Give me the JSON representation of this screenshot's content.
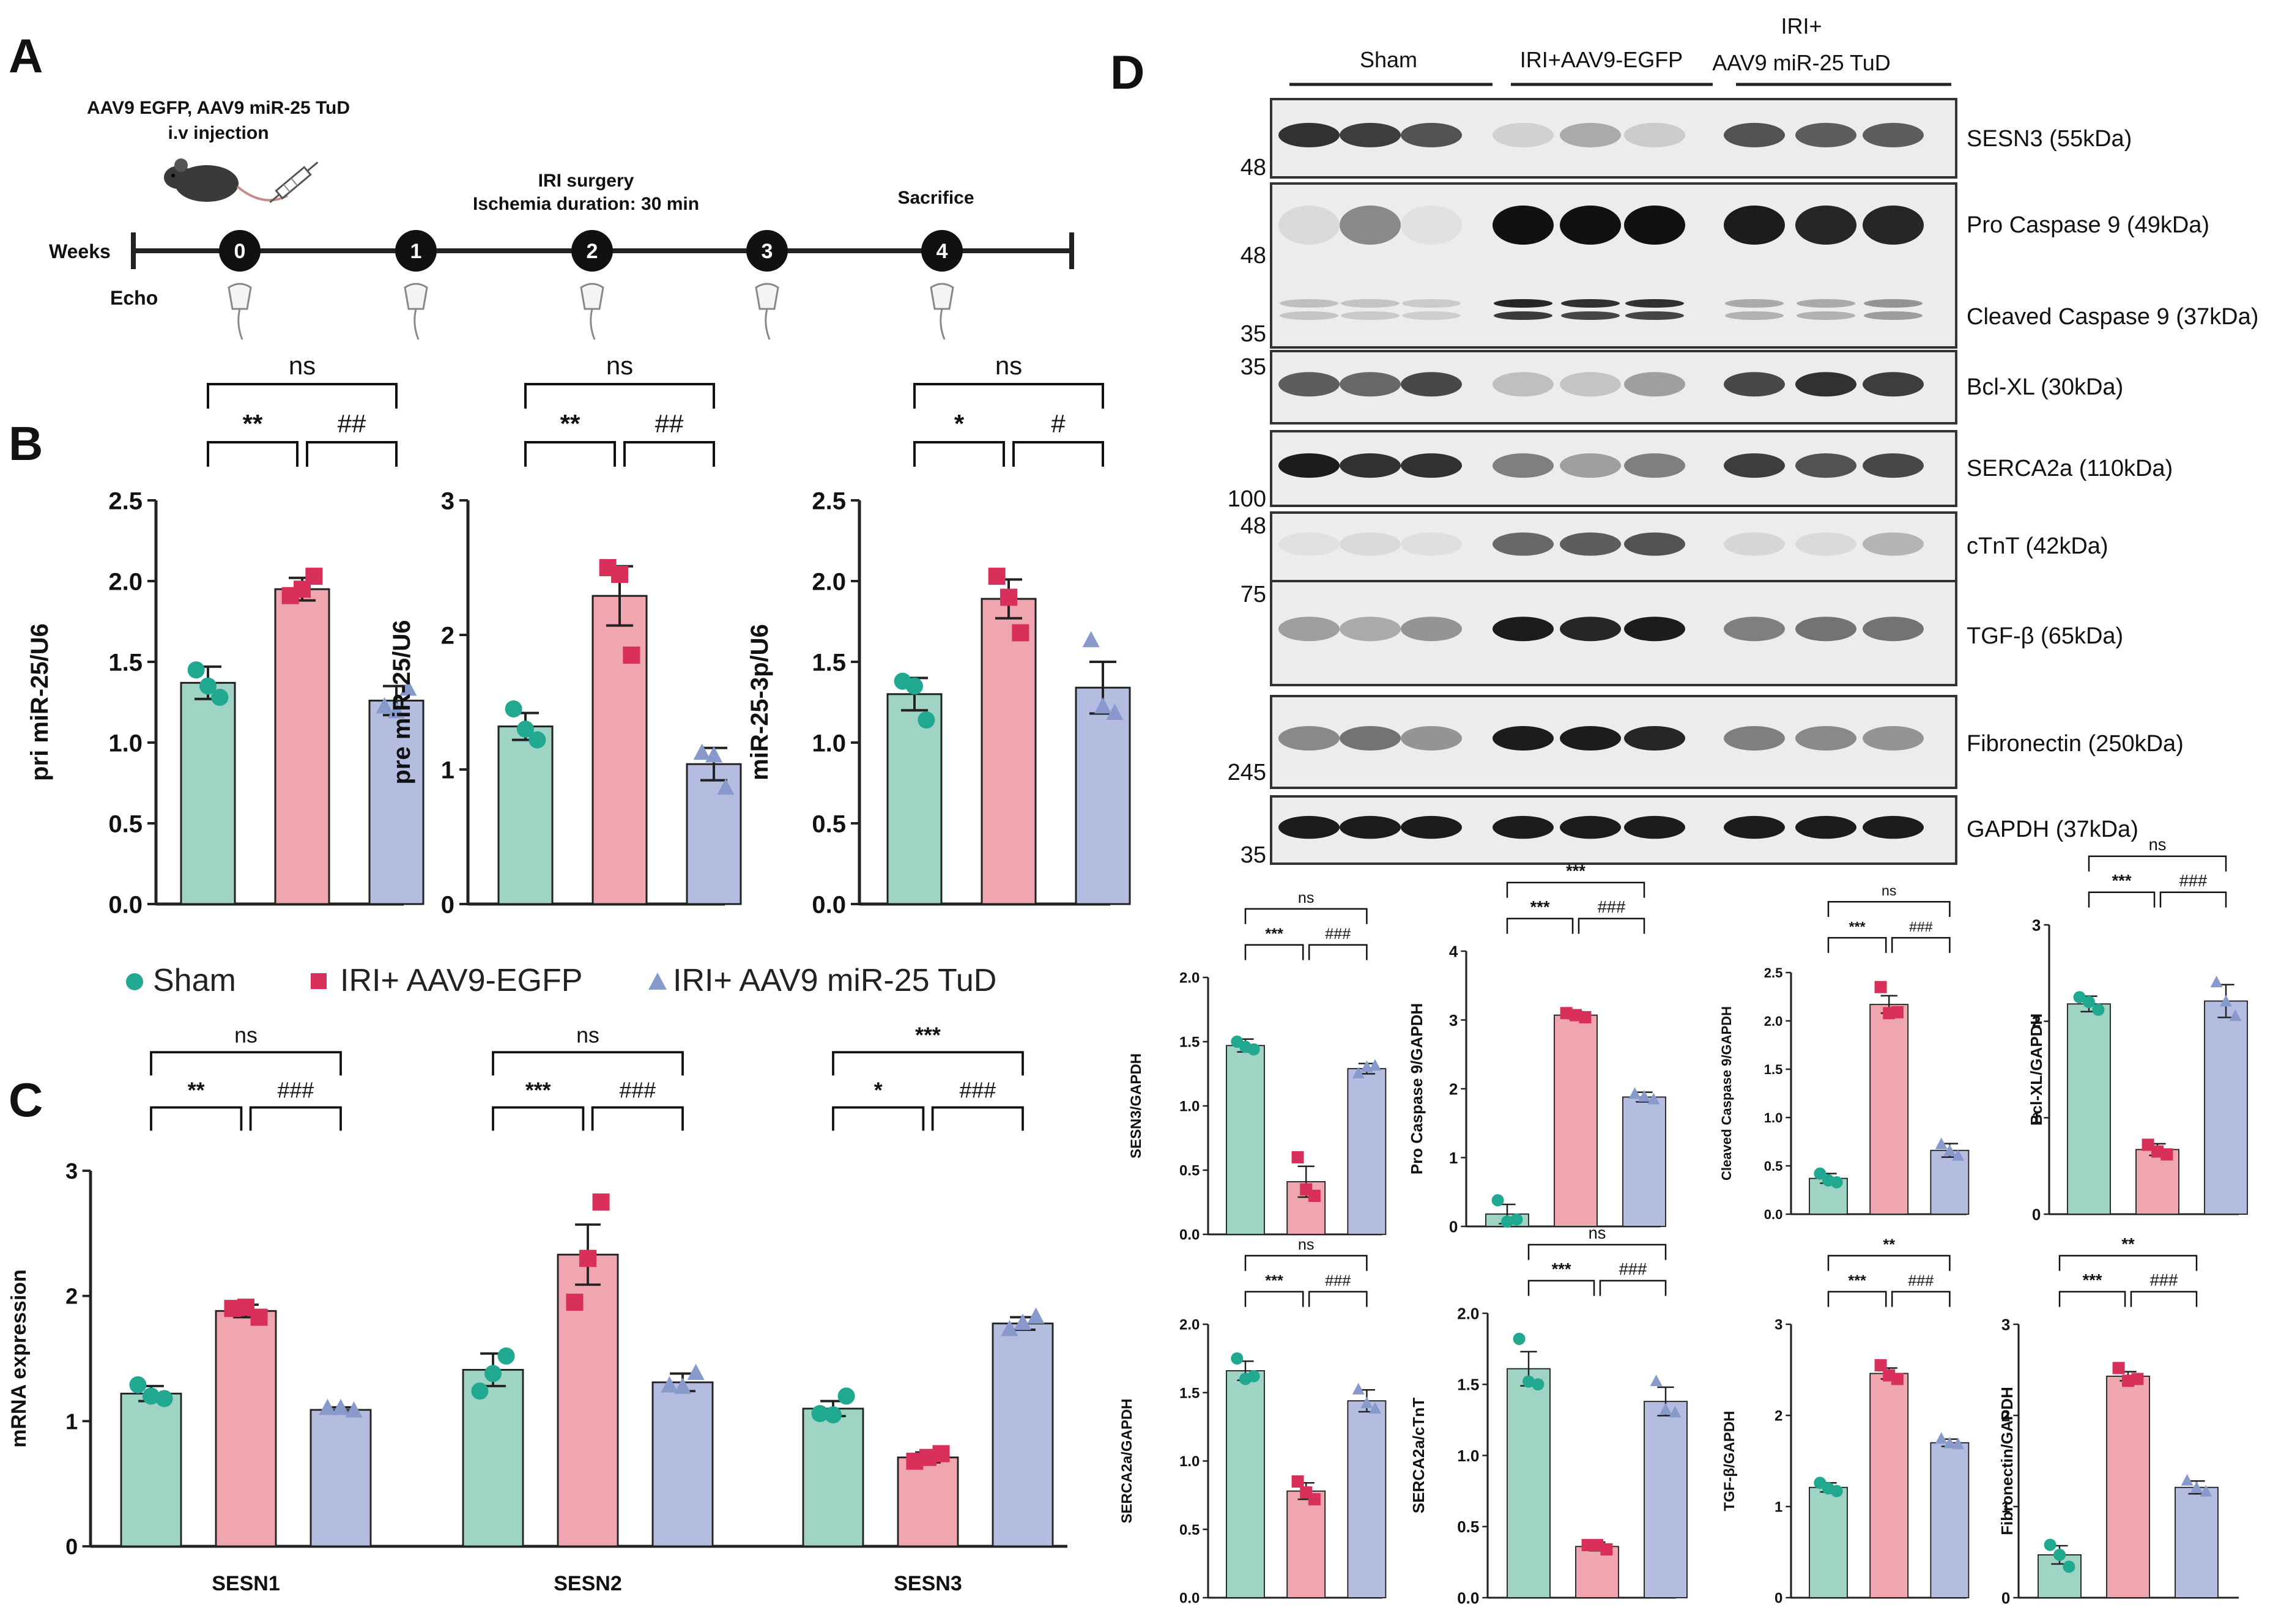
{
  "colors": {
    "sham": "#9fd3c4",
    "sham_dot": "#20a890",
    "iri": "#f0a6ae",
    "iri_dot": "#d8305a",
    "tud": "#b4bde0",
    "tud_dot": "#8899cc",
    "axis": "#222222",
    "bracket": "#111111"
  },
  "panel_labels": {
    "a": "A",
    "b": "B",
    "c": "C",
    "d": "D"
  },
  "timeline": {
    "weeks_label": "Weeks",
    "echo_label": "Echo",
    "injection_title": "AAV9 EGFP,  AAV9 miR-25 TuD",
    "injection_sub": "i.v injection",
    "surgery_title": "IRI surgery",
    "surgery_sub": "Ischemia duration: 30 min",
    "sacrifice_label": "Sacrifice",
    "week_nodes": [
      "0",
      "1",
      "2",
      "3",
      "4"
    ]
  },
  "legend": {
    "sham": "Sham",
    "iri": "IRI+ AAV9-EGFP",
    "tud": "IRI+ AAV9 miR-25 TuD"
  },
  "chart_data": [
    {
      "id": "B1",
      "type": "bar",
      "panel": "B",
      "ylabel": "pri miR-25/U6",
      "ylim": [
        0,
        2.5
      ],
      "yticks": [
        "0.0",
        "0.5",
        "1.0",
        "1.5",
        "2.0",
        "2.5"
      ],
      "tickvals": [
        0,
        0.5,
        1.0,
        1.5,
        2.0,
        2.5
      ],
      "categories": [
        "Sham",
        "IRI+ AAV9-EGFP",
        "IRI+ AAV9 miR-25 TuD"
      ],
      "values": [
        1.37,
        1.95,
        1.26
      ],
      "errors": [
        0.1,
        0.07,
        0.09
      ],
      "points": [
        [
          1.45,
          1.28,
          1.35
        ],
        [
          1.91,
          2.03,
          1.95
        ],
        [
          1.22,
          1.33,
          1.19
        ]
      ],
      "brackets": [
        {
          "from": 0,
          "to": 2,
          "label": "ns",
          "level": 2
        },
        {
          "from": 0,
          "to": 1,
          "label": "**",
          "level": 1
        },
        {
          "from": 1,
          "to": 2,
          "label": "##",
          "level": 1
        }
      ]
    },
    {
      "id": "B2",
      "type": "bar",
      "panel": "B",
      "ylabel": "pre miR-25/U6",
      "ylim": [
        0,
        3
      ],
      "yticks": [
        "0",
        "1",
        "2",
        "3"
      ],
      "tickvals": [
        0,
        1,
        2,
        3
      ],
      "categories": [
        "Sham",
        "IRI+ AAV9-EGFP",
        "IRI+ AAV9 miR-25 TuD"
      ],
      "values": [
        1.32,
        2.29,
        1.04
      ],
      "errors": [
        0.1,
        0.22,
        0.12
      ],
      "points": [
        [
          1.45,
          1.22,
          1.3
        ],
        [
          2.5,
          1.85,
          2.45
        ],
        [
          1.12,
          0.86,
          1.1
        ]
      ],
      "brackets": [
        {
          "from": 0,
          "to": 2,
          "label": "ns",
          "level": 2
        },
        {
          "from": 0,
          "to": 1,
          "label": "**",
          "level": 1
        },
        {
          "from": 1,
          "to": 2,
          "label": "##",
          "level": 1
        }
      ]
    },
    {
      "id": "B3",
      "type": "bar",
      "panel": "B",
      "ylabel": "miR-25-3p/U6",
      "ylim": [
        0,
        2.5
      ],
      "yticks": [
        "0.0",
        "0.5",
        "1.0",
        "1.5",
        "2.0",
        "2.5"
      ],
      "tickvals": [
        0,
        0.5,
        1.0,
        1.5,
        2.0,
        2.5
      ],
      "categories": [
        "Sham",
        "IRI+ AAV9-EGFP",
        "IRI+ AAV9 miR-25 TuD"
      ],
      "values": [
        1.3,
        1.89,
        1.34
      ],
      "errors": [
        0.1,
        0.12,
        0.16
      ],
      "points": [
        [
          1.38,
          1.14,
          1.35
        ],
        [
          2.03,
          1.68,
          1.9
        ],
        [
          1.63,
          1.18,
          1.22
        ]
      ],
      "brackets": [
        {
          "from": 0,
          "to": 2,
          "label": "ns",
          "level": 2
        },
        {
          "from": 0,
          "to": 1,
          "label": "*",
          "level": 1
        },
        {
          "from": 1,
          "to": 2,
          "label": "#",
          "level": 1
        }
      ]
    },
    {
      "id": "C",
      "type": "bar",
      "panel": "C",
      "ylabel": "mRNA expression",
      "ylim": [
        0,
        3
      ],
      "yticks": [
        "0",
        "1",
        "2",
        "3"
      ],
      "tickvals": [
        0,
        1,
        2,
        3
      ],
      "groups": [
        "SESN1",
        "SESN2",
        "SESN3"
      ],
      "series": [
        {
          "name": "Sham",
          "values": [
            1.22,
            1.41,
            1.1
          ],
          "errors": [
            0.06,
            0.13,
            0.06
          ],
          "points": [
            [
              1.29,
              1.18,
              1.2
            ],
            [
              1.24,
              1.52,
              1.38
            ],
            [
              1.06,
              1.2,
              1.05
            ]
          ]
        },
        {
          "name": "IRI+ AAV9-EGFP",
          "values": [
            1.88,
            2.33,
            0.71
          ],
          "errors": [
            0.05,
            0.24,
            0.04
          ],
          "points": [
            [
              1.9,
              1.83,
              1.91
            ],
            [
              1.95,
              2.75,
              2.3
            ],
            [
              0.68,
              0.74,
              0.71
            ]
          ]
        },
        {
          "name": "IRI+ AAV9 miR-25 TuD",
          "values": [
            1.09,
            1.31,
            1.78
          ],
          "errors": [
            0.02,
            0.07,
            0.05
          ],
          "points": [
            [
              1.1,
              1.08,
              1.1
            ],
            [
              1.28,
              1.38,
              1.27
            ],
            [
              1.73,
              1.83,
              1.78
            ]
          ]
        }
      ],
      "group_brackets": [
        [
          {
            "from": 0,
            "to": 2,
            "label": "ns",
            "level": 2
          },
          {
            "from": 0,
            "to": 1,
            "label": "**",
            "level": 1
          },
          {
            "from": 1,
            "to": 2,
            "label": "###",
            "level": 1
          }
        ],
        [
          {
            "from": 0,
            "to": 2,
            "label": "ns",
            "level": 2
          },
          {
            "from": 0,
            "to": 1,
            "label": "***",
            "level": 1
          },
          {
            "from": 1,
            "to": 2,
            "label": "###",
            "level": 1
          }
        ],
        [
          {
            "from": 0,
            "to": 2,
            "label": "***",
            "level": 2
          },
          {
            "from": 0,
            "to": 1,
            "label": "*",
            "level": 1
          },
          {
            "from": 1,
            "to": 2,
            "label": "###",
            "level": 1
          }
        ]
      ]
    },
    {
      "id": "D1",
      "type": "bar",
      "panel": "D",
      "ylabel": "SESN3/GAPDH",
      "ylim": [
        0,
        2.0
      ],
      "yticks": [
        "0.0",
        "0.5",
        "1.0",
        "1.5",
        "2.0"
      ],
      "tickvals": [
        0,
        0.5,
        1.0,
        1.5,
        2.0
      ],
      "categories": [
        "Sham",
        "IRI+ AAV9-EGFP",
        "IRI+ AAV9 miR-25 TuD"
      ],
      "values": [
        1.47,
        0.41,
        1.29
      ],
      "errors": [
        0.05,
        0.12,
        0.04
      ],
      "points": [
        [
          1.5,
          1.44,
          1.46
        ],
        [
          0.6,
          0.3,
          0.35
        ],
        [
          1.25,
          1.31,
          1.3
        ]
      ],
      "brackets": [
        {
          "from": 0,
          "to": 2,
          "label": "ns",
          "level": 2
        },
        {
          "from": 0,
          "to": 1,
          "label": "***",
          "level": 1
        },
        {
          "from": 1,
          "to": 2,
          "label": "###",
          "level": 1
        }
      ]
    },
    {
      "id": "D2",
      "type": "bar",
      "panel": "D",
      "ylabel": "Pro Caspase 9/GAPDH",
      "ylim": [
        0,
        4
      ],
      "yticks": [
        "0",
        "1",
        "2",
        "3",
        "4"
      ],
      "tickvals": [
        0,
        1,
        2,
        3,
        4
      ],
      "categories": [
        "Sham",
        "IRI+ AAV9-EGFP",
        "IRI+ AAV9 miR-25 TuD"
      ],
      "values": [
        0.18,
        3.07,
        1.88
      ],
      "errors": [
        0.14,
        0.05,
        0.07
      ],
      "points": [
        [
          0.38,
          0.1,
          0.07
        ],
        [
          3.1,
          3.04,
          3.07
        ],
        [
          1.92,
          1.84,
          1.88
        ]
      ],
      "brackets": [
        {
          "from": 0,
          "to": 2,
          "label": "***",
          "level": 2
        },
        {
          "from": 0,
          "to": 1,
          "label": "***",
          "level": 1
        },
        {
          "from": 1,
          "to": 2,
          "label": "###",
          "level": 1
        }
      ]
    },
    {
      "id": "D3",
      "type": "bar",
      "panel": "D",
      "ylabel": "Cleaved Caspase 9/GAPDH",
      "ylim": [
        0,
        2.5
      ],
      "yticks": [
        "0.0",
        "0.5",
        "1.0",
        "1.5",
        "2.0",
        "2.5"
      ],
      "tickvals": [
        0,
        0.5,
        1.0,
        1.5,
        2.0,
        2.5
      ],
      "categories": [
        "Sham",
        "IRI+ AAV9-EGFP",
        "IRI+ AAV9 miR-25 TuD"
      ],
      "values": [
        0.37,
        2.17,
        0.66
      ],
      "errors": [
        0.05,
        0.09,
        0.07
      ],
      "points": [
        [
          0.42,
          0.33,
          0.35
        ],
        [
          2.35,
          2.09,
          2.08
        ],
        [
          0.72,
          0.6,
          0.65
        ]
      ],
      "brackets": [
        {
          "from": 0,
          "to": 2,
          "label": "ns",
          "level": 2
        },
        {
          "from": 0,
          "to": 1,
          "label": "***",
          "level": 1
        },
        {
          "from": 1,
          "to": 2,
          "label": "###",
          "level": 1
        }
      ]
    },
    {
      "id": "D4",
      "type": "bar",
      "panel": "D",
      "ylabel": "Bcl-XL/GAPDH",
      "ylim": [
        0,
        3
      ],
      "yticks": [
        "0",
        "1",
        "2",
        "3"
      ],
      "tickvals": [
        0,
        1,
        2,
        3
      ],
      "categories": [
        "Sham",
        "IRI+ AAV9-EGFP",
        "IRI+ AAV9 miR-25 TuD"
      ],
      "values": [
        2.18,
        0.67,
        2.21
      ],
      "errors": [
        0.08,
        0.06,
        0.17
      ],
      "points": [
        [
          2.25,
          2.12,
          2.2
        ],
        [
          0.72,
          0.62,
          0.65
        ],
        [
          2.4,
          2.05,
          2.2
        ]
      ],
      "brackets": [
        {
          "from": 0,
          "to": 2,
          "label": "ns",
          "level": 2
        },
        {
          "from": 0,
          "to": 1,
          "label": "***",
          "level": 1
        },
        {
          "from": 1,
          "to": 2,
          "label": "###",
          "level": 1
        }
      ]
    },
    {
      "id": "D5",
      "type": "bar",
      "panel": "D",
      "ylabel": "SERCA2a/GAPDH",
      "ylim": [
        0,
        2.0
      ],
      "yticks": [
        "0.0",
        "0.5",
        "1.0",
        "1.5",
        "2.0"
      ],
      "tickvals": [
        0,
        0.5,
        1.0,
        1.5,
        2.0
      ],
      "categories": [
        "Sham",
        "IRI+ AAV9-EGFP",
        "IRI+ AAV9 miR-25 TuD"
      ],
      "values": [
        1.66,
        0.78,
        1.44
      ],
      "errors": [
        0.07,
        0.06,
        0.08
      ],
      "points": [
        [
          1.75,
          1.62,
          1.6
        ],
        [
          0.85,
          0.72,
          0.77
        ],
        [
          1.52,
          1.38,
          1.42
        ]
      ],
      "brackets": [
        {
          "from": 0,
          "to": 2,
          "label": "ns",
          "level": 2
        },
        {
          "from": 0,
          "to": 1,
          "label": "***",
          "level": 1
        },
        {
          "from": 1,
          "to": 2,
          "label": "###",
          "level": 1
        }
      ]
    },
    {
      "id": "D6",
      "type": "bar",
      "panel": "D",
      "ylabel": "SERCA2a/cTnT",
      "ylim": [
        0,
        2.0
      ],
      "yticks": [
        "0.0",
        "0.5",
        "1.0",
        "1.5",
        "2.0"
      ],
      "tickvals": [
        0,
        0.5,
        1.0,
        1.5,
        2.0
      ],
      "categories": [
        "Sham",
        "IRI+ AAV9-EGFP",
        "IRI+ AAV9 miR-25 TuD"
      ],
      "values": [
        1.61,
        0.36,
        1.38
      ],
      "errors": [
        0.12,
        0.03,
        0.1
      ],
      "points": [
        [
          1.82,
          1.5,
          1.52
        ],
        [
          0.37,
          0.34,
          0.37
        ],
        [
          1.52,
          1.3,
          1.32
        ]
      ],
      "brackets": [
        {
          "from": 0,
          "to": 2,
          "label": "ns",
          "level": 2
        },
        {
          "from": 0,
          "to": 1,
          "label": "***",
          "level": 1
        },
        {
          "from": 1,
          "to": 2,
          "label": "###",
          "level": 1
        }
      ]
    },
    {
      "id": "D7",
      "type": "bar",
      "panel": "D",
      "ylabel": "TGF-β/GAPDH",
      "ylim": [
        0,
        3
      ],
      "yticks": [
        "0",
        "1",
        "2",
        "3"
      ],
      "tickvals": [
        0,
        1,
        2,
        3
      ],
      "categories": [
        "Sham",
        "IRI+ AAV9-EGFP",
        "IRI+ AAV9 miR-25 TuD"
      ],
      "values": [
        1.21,
        2.46,
        1.7
      ],
      "errors": [
        0.05,
        0.06,
        0.04
      ],
      "points": [
        [
          1.26,
          1.17,
          1.2
        ],
        [
          2.55,
          2.4,
          2.44
        ],
        [
          1.74,
          1.68,
          1.69
        ]
      ],
      "brackets": [
        {
          "from": 0,
          "to": 2,
          "label": "**",
          "level": 2
        },
        {
          "from": 0,
          "to": 1,
          "label": "***",
          "level": 1
        },
        {
          "from": 1,
          "to": 2,
          "label": "###",
          "level": 1
        }
      ]
    },
    {
      "id": "D8",
      "type": "bar",
      "panel": "D",
      "ylabel": "Fibronectin/GAPDH",
      "ylim": [
        0,
        3
      ],
      "yticks": [
        "0",
        "1",
        "2",
        "3"
      ],
      "tickvals": [
        0,
        1,
        2,
        3
      ],
      "categories": [
        "Sham",
        "IRI+ AAV9-EGFP",
        "IRI+ AAV9 miR-25 TuD"
      ],
      "values": [
        0.47,
        2.43,
        1.21
      ],
      "errors": [
        0.1,
        0.05,
        0.07
      ],
      "points": [
        [
          0.58,
          0.34,
          0.47
        ],
        [
          2.52,
          2.4,
          2.38
        ],
        [
          1.28,
          1.16,
          1.2
        ]
      ],
      "brackets": [
        {
          "from": 0,
          "to": 2,
          "label": "**",
          "level": 2
        },
        {
          "from": 0,
          "to": 1,
          "label": "***",
          "level": 1
        },
        {
          "from": 1,
          "to": 2,
          "label": "###",
          "level": 1
        }
      ]
    }
  ],
  "western_blot": {
    "group_labels": {
      "sham": "Sham",
      "iri": "IRI+AAV9-EGFP",
      "tud_line1": "IRI+",
      "tud_line2": "AAV9 miR-25 TuD"
    },
    "blots": [
      {
        "label": "SESN3 (55kDa)",
        "marker": "48",
        "intensity": [
          0.85,
          0.8,
          0.7,
          0.12,
          0.3,
          0.15,
          0.7,
          0.65,
          0.65
        ]
      },
      {
        "label": "Bcl-XL (30kDa)",
        "marker": "35",
        "intensity": [
          0.65,
          0.6,
          0.75,
          0.2,
          0.18,
          0.35,
          0.75,
          0.85,
          0.8
        ]
      },
      {
        "label": "SERCA2a (110kDa)",
        "marker": "100",
        "intensity": [
          0.95,
          0.85,
          0.85,
          0.5,
          0.35,
          0.5,
          0.8,
          0.7,
          0.75
        ]
      },
      {
        "label": "cTnT (42kDa)",
        "marker": "48",
        "intensity": [
          0.05,
          0.08,
          0.06,
          0.6,
          0.65,
          0.7,
          0.1,
          0.08,
          0.25
        ]
      },
      {
        "label": "TGF-β (65kDa)",
        "marker": "75",
        "intensity": [
          0.35,
          0.3,
          0.4,
          0.95,
          0.9,
          0.95,
          0.5,
          0.55,
          0.55
        ]
      },
      {
        "label": "Fibronectin (250kDa)",
        "marker": "245",
        "intensity": [
          0.45,
          0.55,
          0.4,
          0.95,
          0.95,
          0.9,
          0.5,
          0.45,
          0.4
        ]
      },
      {
        "label": "GAPDH (37kDa)",
        "marker": "35",
        "intensity": [
          0.95,
          0.95,
          0.95,
          0.95,
          0.95,
          0.95,
          0.95,
          0.95,
          0.95
        ]
      }
    ],
    "caspase": {
      "pro_label": "Pro Caspase 9 (49kDa)",
      "cleaved_label": "Cleaved Caspase 9 (37kDa)",
      "marker_top": "48",
      "marker_bottom": "35",
      "pro_intensity": [
        0.08,
        0.45,
        0.05,
        1.0,
        1.0,
        1.0,
        0.95,
        0.9,
        0.9
      ],
      "cleaved_intensity": [
        0.2,
        0.18,
        0.15,
        0.9,
        0.85,
        0.85,
        0.3,
        0.3,
        0.4
      ]
    }
  }
}
